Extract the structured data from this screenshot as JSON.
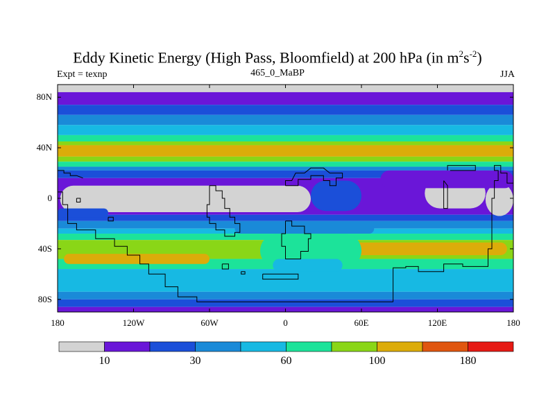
{
  "chart_data": {
    "type": "heatmap",
    "title": "Eddy Kinetic Energy (High Pass, Bloomfield) at 200 hPa (in m",
    "title_unit_m_exp": "2",
    "title_unit_s": "s",
    "title_unit_s_exp": "-2",
    "title_close": ")",
    "subtitle": "465_0_MaBP",
    "left_label": "Expt = texnp",
    "right_label": "JJA",
    "lon_range": [
      -180,
      180
    ],
    "lat_range": [
      -90,
      90
    ],
    "xticks": [
      {
        "value": -180,
        "label": "180"
      },
      {
        "value": -120,
        "label": "120W"
      },
      {
        "value": -60,
        "label": "60W"
      },
      {
        "value": 0,
        "label": "0"
      },
      {
        "value": 60,
        "label": "60E"
      },
      {
        "value": 120,
        "label": "120E"
      },
      {
        "value": 180,
        "label": "180"
      }
    ],
    "yticks": [
      {
        "value": 80,
        "label": "80N"
      },
      {
        "value": 40,
        "label": "40N"
      },
      {
        "value": 0,
        "label": "0"
      },
      {
        "value": -40,
        "label": "40S"
      },
      {
        "value": -80,
        "label": "80S"
      }
    ],
    "colorbar": {
      "colors": [
        "#d3d3d3",
        "#6a16d8",
        "#1b4fd9",
        "#1a8ad8",
        "#17b9e3",
        "#1ce39a",
        "#8ad617",
        "#dcac0a",
        "#e0560f",
        "#e61a14"
      ],
      "labels": [
        {
          "index": 1,
          "text": "10"
        },
        {
          "index": 3,
          "text": "30"
        },
        {
          "index": 5,
          "text": "60"
        },
        {
          "index": 7,
          "text": "100"
        },
        {
          "index": 9,
          "text": "180"
        }
      ]
    },
    "bands": [
      {
        "lat": [
          90,
          84
        ],
        "level": 0
      },
      {
        "lat": [
          84,
          74
        ],
        "level": 1
      },
      {
        "lat": [
          74,
          66
        ],
        "level": 2
      },
      {
        "lat": [
          66,
          58
        ],
        "level": 3
      },
      {
        "lat": [
          58,
          50
        ],
        "level": 4
      },
      {
        "lat": [
          50,
          45
        ],
        "level": 5
      },
      {
        "lat": [
          45,
          42
        ],
        "level": 6
      },
      {
        "lat": [
          42,
          33
        ],
        "level": 7
      },
      {
        "lat": [
          33,
          29
        ],
        "level": 6
      },
      {
        "lat": [
          29,
          25
        ],
        "level": 5
      },
      {
        "lat": [
          25,
          22
        ],
        "level": 3
      },
      {
        "lat": [
          22,
          16
        ],
        "level": 2
      },
      {
        "lat": [
          16,
          -13
        ],
        "level": 1
      },
      {
        "lat": [
          -13,
          -18
        ],
        "level": 2
      },
      {
        "lat": [
          -18,
          -24
        ],
        "level": 3
      },
      {
        "lat": [
          -24,
          -28
        ],
        "level": 4
      },
      {
        "lat": [
          -28,
          -33
        ],
        "level": 5
      },
      {
        "lat": [
          -33,
          -48
        ],
        "level": 6
      },
      {
        "lat": [
          -48,
          -56
        ],
        "level": 5
      },
      {
        "lat": [
          -56,
          -74
        ],
        "level": 4
      },
      {
        "lat": [
          -74,
          -80
        ],
        "level": 3
      },
      {
        "lat": [
          -80,
          -86
        ],
        "level": 2
      },
      {
        "lat": [
          -86,
          -90
        ],
        "level": 1
      }
    ],
    "patches": [
      {
        "lon": [
          -180,
          70
        ],
        "lat": [
          8,
          14
        ],
        "level": 1
      },
      {
        "lon": [
          -178,
          20
        ],
        "lat": [
          10,
          -11
        ],
        "level": 0
      },
      {
        "lon": [
          110,
          158
        ],
        "lat": [
          16,
          -8
        ],
        "level": 0
      },
      {
        "lon": [
          158,
          180
        ],
        "lat": [
          12,
          -14
        ],
        "level": 0
      },
      {
        "lon": [
          75,
          180
        ],
        "lat": [
          22,
          8
        ],
        "level": 1
      },
      {
        "lon": [
          20,
          60
        ],
        "lat": [
          14,
          -10
        ],
        "level": 2
      },
      {
        "lon": [
          -180,
          -140
        ],
        "lat": [
          -8,
          -15
        ],
        "level": 2
      },
      {
        "lon": [
          -40,
          70
        ],
        "lat": [
          -20,
          -28
        ],
        "level": 3
      },
      {
        "lon": [
          -175,
          -60
        ],
        "lat": [
          -44,
          -52
        ],
        "level": 7
      },
      {
        "lon": [
          50,
          175
        ],
        "lat": [
          -35,
          -45
        ],
        "level": 7
      },
      {
        "lon": [
          -20,
          60
        ],
        "lat": [
          -28,
          -55
        ],
        "level": 5
      },
      {
        "lon": [
          -10,
          45
        ],
        "lat": [
          -48,
          -58
        ],
        "level": 4
      }
    ],
    "coastlines": [
      [
        [
          -180,
          22
        ],
        [
          -175,
          22
        ],
        [
          -175,
          20
        ],
        [
          -170,
          20
        ],
        [
          -170,
          18
        ],
        [
          -165,
          18
        ],
        [
          -160,
          16
        ]
      ],
      [
        [
          -180,
          5
        ],
        [
          -176,
          5
        ],
        [
          -176,
          -5
        ],
        [
          -172,
          -5
        ],
        [
          -172,
          -20
        ],
        [
          -165,
          -20
        ],
        [
          -165,
          -25
        ],
        [
          -150,
          -25
        ],
        [
          -150,
          -32
        ],
        [
          -135,
          -32
        ],
        [
          -135,
          -38
        ],
        [
          -125,
          -38
        ],
        [
          -125,
          -45
        ],
        [
          -115,
          -45
        ],
        [
          -115,
          -52
        ],
        [
          -108,
          -52
        ],
        [
          -108,
          -60
        ],
        [
          -95,
          -60
        ],
        [
          -95,
          -70
        ],
        [
          -85,
          -70
        ],
        [
          -85,
          -78
        ],
        [
          -70,
          -78
        ],
        [
          -70,
          -82
        ],
        [
          -40,
          -82
        ],
        [
          -20,
          -82
        ],
        [
          20,
          -82
        ],
        [
          60,
          -82
        ],
        [
          85,
          -82
        ]
      ],
      [
        [
          -165,
          0
        ],
        [
          -162,
          0
        ],
        [
          -162,
          -3
        ],
        [
          -165,
          -3
        ],
        [
          -165,
          0
        ]
      ],
      [
        [
          -140,
          -15
        ],
        [
          -136,
          -15
        ],
        [
          -136,
          -18
        ],
        [
          -140,
          -18
        ],
        [
          -140,
          -15
        ]
      ],
      [
        [
          -60,
          10
        ],
        [
          -55,
          10
        ],
        [
          -55,
          6
        ],
        [
          -50,
          6
        ],
        [
          -50,
          0
        ],
        [
          -48,
          0
        ],
        [
          -48,
          -8
        ],
        [
          -44,
          -8
        ],
        [
          -44,
          -15
        ],
        [
          -40,
          -15
        ],
        [
          -40,
          -20
        ],
        [
          -36,
          -20
        ],
        [
          -36,
          -27
        ],
        [
          -40,
          -27
        ],
        [
          -40,
          -30
        ],
        [
          -48,
          -30
        ],
        [
          -48,
          -25
        ],
        [
          -55,
          -25
        ],
        [
          -55,
          -20
        ],
        [
          -60,
          -20
        ],
        [
          -60,
          -15
        ],
        [
          -62,
          -15
        ],
        [
          -62,
          -5
        ],
        [
          -60,
          -5
        ],
        [
          -60,
          10
        ]
      ],
      [
        [
          -50,
          -52
        ],
        [
          -45,
          -52
        ],
        [
          -45,
          -56
        ],
        [
          -50,
          -56
        ],
        [
          -50,
          -52
        ]
      ],
      [
        [
          -35,
          -58
        ],
        [
          -32,
          -58
        ],
        [
          -32,
          -60
        ],
        [
          -35,
          -60
        ],
        [
          -35,
          -58
        ]
      ],
      [
        [
          0,
          10
        ],
        [
          10,
          10
        ],
        [
          10,
          15
        ],
        [
          20,
          15
        ],
        [
          20,
          18
        ],
        [
          30,
          18
        ],
        [
          30,
          14
        ],
        [
          35,
          14
        ],
        [
          35,
          10
        ],
        [
          40,
          10
        ],
        [
          40,
          16
        ],
        [
          45,
          16
        ],
        [
          45,
          20
        ],
        [
          35,
          20
        ],
        [
          30,
          24
        ],
        [
          20,
          24
        ],
        [
          15,
          20
        ],
        [
          8,
          20
        ],
        [
          5,
          14
        ],
        [
          0,
          14
        ],
        [
          0,
          10
        ]
      ],
      [
        [
          0,
          -18
        ],
        [
          5,
          -18
        ],
        [
          5,
          -22
        ],
        [
          15,
          -22
        ],
        [
          15,
          -28
        ],
        [
          20,
          -28
        ],
        [
          20,
          -32
        ],
        [
          18,
          -32
        ],
        [
          18,
          -42
        ],
        [
          12,
          -42
        ],
        [
          12,
          -48
        ],
        [
          0,
          -48
        ],
        [
          0,
          -38
        ],
        [
          -3,
          -38
        ],
        [
          -3,
          -28
        ],
        [
          0,
          -28
        ],
        [
          0,
          -18
        ]
      ],
      [
        [
          -18,
          -60
        ],
        [
          10,
          -60
        ],
        [
          10,
          -64
        ],
        [
          -18,
          -64
        ],
        [
          -18,
          -60
        ]
      ],
      [
        [
          85,
          -82
        ],
        [
          85,
          -55
        ],
        [
          95,
          -55
        ],
        [
          95,
          -54
        ],
        [
          105,
          -54
        ],
        [
          105,
          -58
        ],
        [
          125,
          -58
        ],
        [
          125,
          -52
        ],
        [
          140,
          -52
        ],
        [
          140,
          -54
        ],
        [
          160,
          -54
        ],
        [
          160,
          -40
        ],
        [
          163,
          -40
        ],
        [
          163,
          -28
        ],
        [
          163,
          0
        ],
        [
          165,
          0
        ],
        [
          165,
          14
        ],
        [
          168,
          14
        ],
        [
          168,
          22
        ],
        [
          165,
          22
        ],
        [
          165,
          26
        ],
        [
          170,
          26
        ],
        [
          170,
          20
        ],
        [
          175,
          20
        ],
        [
          175,
          12
        ],
        [
          180,
          12
        ]
      ],
      [
        [
          128,
          22
        ],
        [
          128,
          26
        ],
        [
          150,
          26
        ],
        [
          150,
          22
        ],
        [
          130,
          22
        ]
      ],
      [
        [
          125,
          14
        ],
        [
          125,
          -8
        ],
        [
          128,
          -8
        ],
        [
          128,
          10
        ],
        [
          125,
          14
        ]
      ]
    ]
  }
}
